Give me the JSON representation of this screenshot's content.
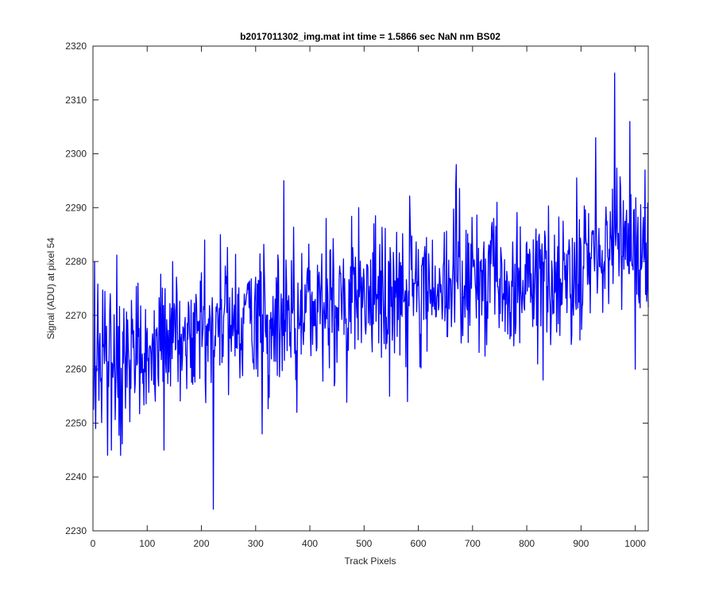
{
  "chart_data": {
    "type": "line",
    "title": "b2017011302_img.mat int time = 1.5866 sec  NaN nm BS02",
    "xlabel": "Track Pixels",
    "ylabel": "Signal (ADU) at pixel 54",
    "xlim": [
      0,
      1024
    ],
    "ylim": [
      2230,
      2320
    ],
    "xticks": [
      0,
      100,
      200,
      300,
      400,
      500,
      600,
      700,
      800,
      900,
      1000
    ],
    "yticks": [
      2230,
      2240,
      2250,
      2260,
      2270,
      2280,
      2290,
      2300,
      2310,
      2320
    ],
    "grid": false,
    "line_color": "#0000ff",
    "series": [
      {
        "x": [
          0,
          20,
          40,
          60,
          80,
          100,
          120,
          140,
          160,
          180,
          200,
          220,
          240,
          260,
          280,
          300,
          320,
          340,
          360,
          380,
          400,
          420,
          440,
          460,
          480,
          500,
          520,
          540,
          560,
          580,
          600,
          620,
          640,
          660,
          680,
          700,
          720,
          740,
          760,
          780,
          800,
          820,
          840,
          860,
          880,
          900,
          920,
          940,
          960,
          980,
          1000,
          1020
        ],
        "values": [
          2262,
          2263,
          2259,
          2261,
          2263,
          2265,
          2264,
          2265,
          2266,
          2266,
          2267,
          2267,
          2268,
          2268,
          2269,
          2269,
          2269,
          2270,
          2271,
          2271,
          2272,
          2272,
          2273,
          2273,
          2274,
          2275,
          2275,
          2275,
          2276,
          2276,
          2276,
          2276,
          2276,
          2276,
          2277,
          2277,
          2277,
          2277,
          2276,
          2276,
          2276,
          2276,
          2276,
          2277,
          2277,
          2278,
          2279,
          2281,
          2284,
          2283,
          2281,
          2282
        ]
      }
    ],
    "extremes": [
      {
        "x": 3,
        "y": 2280
      },
      {
        "x": 5,
        "y": 2249
      },
      {
        "x": 32,
        "y": 2274
      },
      {
        "x": 34,
        "y": 2245
      },
      {
        "x": 51,
        "y": 2244
      },
      {
        "x": 83,
        "y": 2276
      },
      {
        "x": 131,
        "y": 2245
      },
      {
        "x": 147,
        "y": 2280
      },
      {
        "x": 206,
        "y": 2284
      },
      {
        "x": 222,
        "y": 2234
      },
      {
        "x": 235,
        "y": 2285
      },
      {
        "x": 312,
        "y": 2248
      },
      {
        "x": 352,
        "y": 2295
      },
      {
        "x": 376,
        "y": 2252
      },
      {
        "x": 430,
        "y": 2288
      },
      {
        "x": 490,
        "y": 2290
      },
      {
        "x": 547,
        "y": 2255
      },
      {
        "x": 580,
        "y": 2254
      },
      {
        "x": 670,
        "y": 2298
      },
      {
        "x": 745,
        "y": 2291
      },
      {
        "x": 830,
        "y": 2258
      },
      {
        "x": 927,
        "y": 2303
      },
      {
        "x": 955,
        "y": 2285
      },
      {
        "x": 962,
        "y": 2315
      },
      {
        "x": 990,
        "y": 2306
      },
      {
        "x": 1000,
        "y": 2260
      },
      {
        "x": 1018,
        "y": 2297
      }
    ]
  }
}
